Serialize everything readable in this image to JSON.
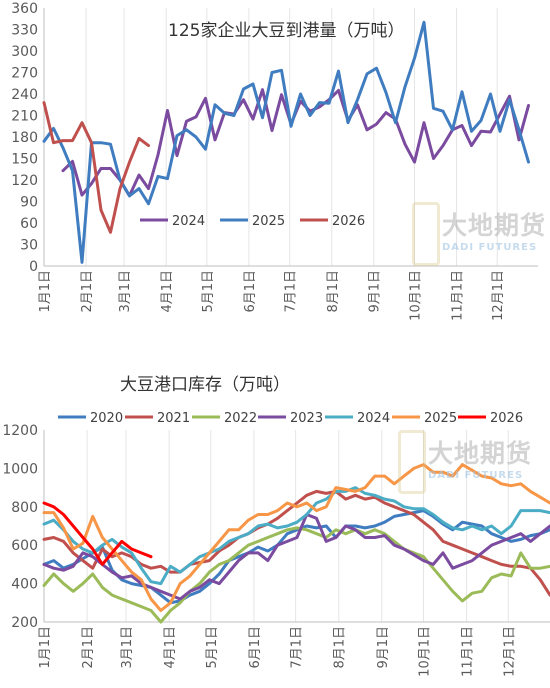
{
  "charts": [
    {
      "id": "arrivals",
      "watermark": {
        "main": "大地期货",
        "sub": "DADI FUTURES"
      }
    },
    {
      "id": "inventory",
      "watermark": {
        "main": "大地期货",
        "sub": "DADI FUTURES"
      }
    }
  ],
  "chart_data": [
    {
      "type": "line",
      "title": "125家企业大豆到港量（万吨）",
      "ylim": [
        0,
        360
      ],
      "yticks": [
        0,
        30,
        60,
        90,
        120,
        150,
        180,
        210,
        240,
        270,
        300,
        330,
        360
      ],
      "xlim": [
        1,
        53
      ],
      "x_tick_labels": [
        "1月1日",
        "2月1日",
        "3月1日",
        "4月1日",
        "5月1日",
        "6月1日",
        "7月1日",
        "8月1日",
        "9月1日",
        "10月1日",
        "11月1日",
        "12月1日"
      ],
      "x_tick_positions": [
        1,
        5.43,
        9.43,
        13.86,
        18.14,
        22.57,
        26.86,
        31.29,
        35.71,
        40,
        44.43,
        48.71
      ],
      "x_tick_label_rotation": -90,
      "grid": "vertical",
      "legend": "bottom-center",
      "series": [
        {
          "name": "2024",
          "color": "#7B4BA0",
          "x": [
            3,
            4,
            5,
            6,
            7,
            8,
            9,
            10,
            11,
            12,
            13,
            14,
            15,
            16,
            17,
            18,
            19,
            20,
            21,
            22,
            23,
            24,
            25,
            26,
            27,
            28,
            29,
            30,
            31,
            32,
            33,
            34,
            35,
            36,
            37,
            38,
            39,
            40,
            41,
            42,
            43,
            44,
            45,
            46,
            47,
            48,
            49,
            50,
            51,
            52,
            53
          ],
          "values": [
            133,
            146,
            99,
            115,
            136,
            136,
            120,
            98,
            127,
            108,
            155,
            217,
            154,
            202,
            208,
            234,
            176,
            214,
            212,
            232,
            205,
            246,
            189,
            239,
            198,
            230,
            216,
            222,
            232,
            245,
            203,
            225,
            190,
            198,
            214,
            205,
            170,
            145,
            200,
            150,
            168,
            190,
            196,
            168,
            188,
            187,
            212,
            237,
            176,
            224,
            null
          ]
        },
        {
          "name": "2025",
          "color": "#3F7CC0",
          "x": [
            1,
            2,
            3,
            4,
            5,
            6,
            7,
            8,
            9,
            10,
            11,
            12,
            13,
            14,
            15,
            16,
            17,
            18,
            19,
            20,
            21,
            22,
            23,
            24,
            25,
            26,
            27,
            28,
            29,
            30,
            31,
            32,
            33,
            34,
            35,
            36,
            37,
            38,
            39,
            40,
            41,
            42,
            43,
            44,
            45,
            46,
            47,
            48,
            49,
            50,
            51,
            52
          ],
          "values": [
            174,
            192,
            165,
            133,
            5,
            172,
            172,
            170,
            120,
            98,
            108,
            87,
            125,
            122,
            182,
            190,
            180,
            163,
            225,
            213,
            210,
            247,
            254,
            207,
            270,
            273,
            195,
            240,
            210,
            228,
            227,
            272,
            200,
            232,
            268,
            276,
            242,
            200,
            250,
            290,
            340,
            220,
            216,
            190,
            243,
            188,
            203,
            240,
            188,
            232,
            190,
            145
          ]
        },
        {
          "name": "2026",
          "color": "#C0504D",
          "x": [
            1,
            2,
            3,
            4,
            5,
            6,
            7,
            8,
            9,
            10,
            11,
            12
          ],
          "values": [
            228,
            172,
            175,
            175,
            200,
            172,
            78,
            47,
            108,
            145,
            178,
            168
          ]
        }
      ]
    },
    {
      "type": "line",
      "title": "大豆港口库存（万吨）",
      "ylim": [
        200,
        1200
      ],
      "yticks": [
        200,
        400,
        600,
        800,
        1000,
        1200
      ],
      "xlim": [
        1,
        53
      ],
      "x_tick_labels": [
        "1月1日",
        "2月1日",
        "3月1日",
        "4月1日",
        "5月1日",
        "6月1日",
        "7月1日",
        "8月1日",
        "9月1日",
        "10月1日",
        "11月1日",
        "12月1日"
      ],
      "x_tick_positions": [
        1,
        5.43,
        9.43,
        13.86,
        18.14,
        22.57,
        26.86,
        31.29,
        35.71,
        40,
        44.43,
        48.71
      ],
      "x_tick_label_rotation": -90,
      "grid": "vertical",
      "legend": "top",
      "series": [
        {
          "name": "2020",
          "color": "#3F7CC0",
          "x": [
            1,
            2,
            3,
            4,
            5,
            6,
            7,
            8,
            9,
            10,
            11,
            12,
            13,
            14,
            15,
            16,
            17,
            18,
            19,
            20,
            21,
            22,
            23,
            24,
            25,
            26,
            27,
            28,
            29,
            30,
            31,
            32,
            33,
            34,
            35,
            36,
            37,
            38,
            39,
            40,
            41,
            42,
            43,
            44,
            45,
            46,
            47,
            48,
            49,
            50,
            51,
            52,
            53
          ],
          "values": [
            500,
            520,
            480,
            500,
            530,
            560,
            590,
            470,
            420,
            400,
            390,
            380,
            340,
            300,
            310,
            340,
            360,
            400,
            450,
            520,
            540,
            560,
            590,
            570,
            600,
            660,
            680,
            700,
            690,
            700,
            640,
            700,
            700,
            690,
            700,
            720,
            750,
            760,
            770,
            780,
            750,
            710,
            680,
            720,
            710,
            700,
            660,
            640,
            620,
            630,
            650,
            660,
            680
          ]
        },
        {
          "name": "2021",
          "color": "#C0504D",
          "x": [
            1,
            2,
            3,
            4,
            5,
            6,
            7,
            8,
            9,
            10,
            11,
            12,
            13,
            14,
            15,
            16,
            17,
            18,
            19,
            20,
            21,
            22,
            23,
            24,
            25,
            26,
            27,
            28,
            29,
            30,
            31,
            32,
            33,
            34,
            35,
            36,
            37,
            38,
            39,
            40,
            41,
            42,
            43,
            44,
            45,
            46,
            47,
            48,
            49,
            50,
            51,
            52,
            53
          ],
          "values": [
            630,
            640,
            620,
            560,
            520,
            480,
            580,
            540,
            560,
            540,
            500,
            480,
            490,
            460,
            460,
            500,
            510,
            520,
            570,
            600,
            640,
            660,
            690,
            710,
            740,
            780,
            820,
            860,
            880,
            870,
            880,
            840,
            860,
            840,
            850,
            820,
            800,
            780,
            760,
            720,
            680,
            620,
            600,
            580,
            560,
            540,
            520,
            500,
            490,
            490,
            480,
            420,
            340
          ]
        },
        {
          "name": "2022",
          "color": "#9BBB59",
          "x": [
            1,
            2,
            3,
            4,
            5,
            6,
            7,
            8,
            9,
            10,
            11,
            12,
            13,
            14,
            15,
            16,
            17,
            18,
            19,
            20,
            21,
            22,
            23,
            24,
            25,
            26,
            27,
            28,
            29,
            30,
            31,
            32,
            33,
            34,
            35,
            36,
            37,
            38,
            39,
            40,
            41,
            42,
            43,
            44,
            45,
            46,
            47,
            48,
            49,
            50,
            51,
            52,
            53
          ],
          "values": [
            390,
            450,
            400,
            360,
            400,
            450,
            380,
            340,
            320,
            300,
            280,
            260,
            200,
            260,
            300,
            360,
            400,
            460,
            500,
            520,
            560,
            600,
            620,
            640,
            660,
            680,
            690,
            680,
            660,
            640,
            680,
            660,
            680,
            660,
            680,
            660,
            620,
            580,
            560,
            540,
            480,
            420,
            360,
            310,
            350,
            360,
            430,
            450,
            440,
            560,
            480,
            480,
            490
          ]
        },
        {
          "name": "2023",
          "color": "#7B4BA0",
          "x": [
            1,
            2,
            3,
            4,
            5,
            6,
            7,
            8,
            9,
            10,
            11,
            12,
            13,
            14,
            15,
            16,
            17,
            18,
            19,
            20,
            21,
            22,
            23,
            24,
            25,
            26,
            27,
            28,
            29,
            30,
            31,
            32,
            33,
            34,
            35,
            36,
            37,
            38,
            39,
            40,
            41,
            42,
            43,
            44,
            45,
            46,
            47,
            48,
            49,
            50,
            51,
            52,
            53
          ],
          "values": [
            500,
            480,
            470,
            490,
            560,
            540,
            500,
            460,
            430,
            440,
            400,
            380,
            360,
            340,
            320,
            360,
            380,
            420,
            400,
            460,
            520,
            560,
            560,
            520,
            600,
            620,
            640,
            760,
            740,
            620,
            640,
            700,
            680,
            640,
            640,
            650,
            600,
            580,
            550,
            520,
            500,
            560,
            480,
            500,
            520,
            560,
            600,
            620,
            640,
            660,
            620,
            660,
            700
          ]
        },
        {
          "name": "2024",
          "color": "#4BACC6",
          "x": [
            1,
            2,
            3,
            4,
            5,
            6,
            7,
            8,
            9,
            10,
            11,
            12,
            13,
            14,
            15,
            16,
            17,
            18,
            19,
            20,
            21,
            22,
            23,
            24,
            25,
            26,
            27,
            28,
            29,
            30,
            31,
            32,
            33,
            34,
            35,
            36,
            37,
            38,
            39,
            40,
            41,
            42,
            43,
            44,
            45,
            46,
            47,
            48,
            49,
            50,
            51,
            52,
            53
          ],
          "values": [
            710,
            730,
            680,
            620,
            580,
            560,
            600,
            630,
            590,
            560,
            480,
            410,
            400,
            490,
            460,
            500,
            540,
            560,
            580,
            620,
            640,
            660,
            700,
            710,
            690,
            700,
            720,
            760,
            820,
            840,
            880,
            880,
            900,
            870,
            860,
            840,
            830,
            800,
            790,
            790,
            760,
            720,
            690,
            680,
            700,
            680,
            700,
            660,
            700,
            780,
            780,
            780,
            770
          ]
        },
        {
          "name": "2025",
          "color": "#F79646",
          "x": [
            1,
            2,
            3,
            4,
            5,
            6,
            7,
            8,
            9,
            10,
            11,
            12,
            13,
            14,
            15,
            16,
            17,
            18,
            19,
            20,
            21,
            22,
            23,
            24,
            25,
            26,
            27,
            28,
            29,
            30,
            31,
            32,
            33,
            34,
            35,
            36,
            37,
            38,
            39,
            40,
            41,
            42,
            43,
            44,
            45,
            46,
            47,
            48,
            49,
            50,
            51,
            52,
            53
          ],
          "values": [
            770,
            770,
            690,
            580,
            610,
            750,
            640,
            580,
            520,
            460,
            420,
            320,
            260,
            300,
            400,
            440,
            500,
            560,
            620,
            680,
            680,
            730,
            760,
            760,
            780,
            820,
            800,
            820,
            780,
            800,
            900,
            890,
            880,
            900,
            960,
            960,
            920,
            960,
            1000,
            1020,
            980,
            980,
            960,
            1020,
            990,
            960,
            950,
            920,
            910,
            920,
            880,
            850,
            820
          ]
        },
        {
          "name": "2026",
          "color": "#FF0000",
          "x": [
            1,
            2,
            3,
            4,
            5,
            6,
            7,
            8,
            9,
            10,
            11,
            12
          ],
          "values": [
            820,
            800,
            760,
            700,
            640,
            580,
            500,
            560,
            620,
            580,
            560,
            540
          ]
        }
      ]
    }
  ]
}
